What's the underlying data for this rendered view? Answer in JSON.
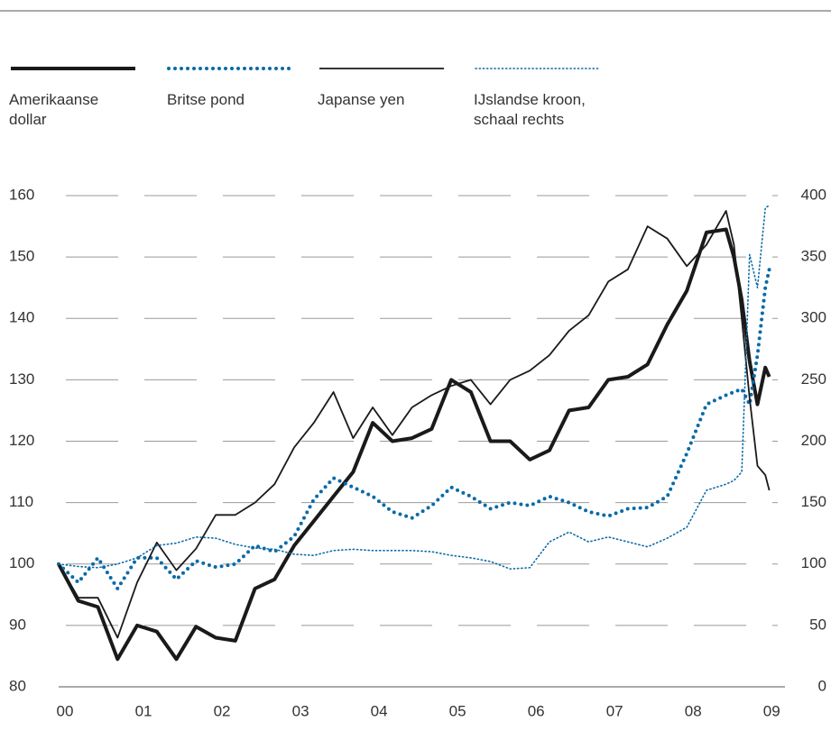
{
  "chart_data": {
    "type": "line",
    "x": [
      2000,
      2000.25,
      2000.5,
      2000.75,
      2001,
      2001.25,
      2001.5,
      2001.75,
      2002,
      2002.25,
      2002.5,
      2002.75,
      2003,
      2003.25,
      2003.5,
      2003.75,
      2004,
      2004.25,
      2004.5,
      2004.75,
      2005,
      2005.25,
      2005.5,
      2005.75,
      2006,
      2006.25,
      2006.5,
      2006.75,
      2007,
      2007.25,
      2007.5,
      2007.75,
      2008,
      2008.25,
      2008.5,
      2008.6,
      2008.7,
      2008.8,
      2008.9,
      2009,
      2009.05
    ],
    "series": [
      {
        "name": "Amerikaanse dollar",
        "color": "#1a1a1a",
        "width": 4,
        "dotted": false,
        "values": [
          100,
          94,
          93,
          84.5,
          90,
          89,
          84.5,
          89.8,
          88,
          87.5,
          96,
          97.5,
          103,
          107,
          111,
          115,
          123,
          120,
          120.5,
          122,
          130,
          128,
          120,
          120,
          117,
          118.5,
          125,
          125.5,
          130,
          130.5,
          132.5,
          139,
          144.5,
          154,
          154.5,
          150,
          143,
          133,
          126,
          132,
          130.5
        ]
      },
      {
        "name": "Britse pond",
        "color": "#0a6aa8",
        "width": 4,
        "dotted": true,
        "values": [
          100,
          97,
          101,
          96,
          101,
          101,
          97.5,
          100.5,
          99.5,
          100,
          103,
          102,
          104.5,
          110.5,
          114,
          112.5,
          111,
          108.5,
          107.5,
          109.5,
          112.5,
          111,
          109,
          110,
          109.5,
          111,
          110,
          108.5,
          107.8,
          109,
          109.2,
          111,
          118,
          126,
          127.5,
          128,
          128.5,
          126,
          134,
          145,
          148
        ]
      },
      {
        "name": "Japanse yen",
        "color": "#1a1a1a",
        "width": 1.8,
        "dotted": false,
        "values": [
          100,
          94.5,
          94.5,
          88,
          97,
          103.5,
          99,
          102.5,
          108,
          108,
          110,
          113,
          119,
          123,
          128,
          120.5,
          125.5,
          121,
          125.5,
          127.5,
          129,
          130,
          126,
          130,
          131.5,
          134,
          138,
          140.5,
          146,
          148,
          155,
          153,
          148.5,
          152,
          157.5,
          152,
          140,
          127,
          116,
          114.5,
          112
        ]
      },
      {
        "name": "IJslandse kroon, schaal rechts",
        "color": "#0a6aa8",
        "width": 1.6,
        "dotted": true,
        "axis": "y2",
        "values": [
          100,
          98,
          97,
          100,
          105,
          115,
          117,
          122,
          121,
          116,
          113,
          112,
          108,
          107,
          111,
          112,
          111,
          111,
          111,
          110,
          107,
          105,
          102,
          96,
          97,
          118,
          126,
          118,
          122,
          118,
          114,
          121,
          130,
          160,
          165,
          168,
          175,
          352,
          325,
          390,
          392
        ]
      }
    ],
    "xlim": [
      2000,
      2009.25
    ],
    "xticks": [
      {
        "value": 2000,
        "label": "00"
      },
      {
        "value": 2001,
        "label": "01"
      },
      {
        "value": 2002,
        "label": "02"
      },
      {
        "value": 2003,
        "label": "03"
      },
      {
        "value": 2004,
        "label": "04"
      },
      {
        "value": 2005,
        "label": "05"
      },
      {
        "value": 2006,
        "label": "06"
      },
      {
        "value": 2007,
        "label": "07"
      },
      {
        "value": 2008,
        "label": "08"
      },
      {
        "value": 2009,
        "label": "09"
      }
    ],
    "ylim": [
      80,
      160
    ],
    "yticks": [
      80,
      90,
      100,
      110,
      120,
      130,
      140,
      150,
      160
    ],
    "y2lim": [
      0,
      400
    ],
    "y2ticks": [
      0,
      50,
      100,
      150,
      200,
      250,
      300,
      350,
      400
    ],
    "grid": true
  }
}
